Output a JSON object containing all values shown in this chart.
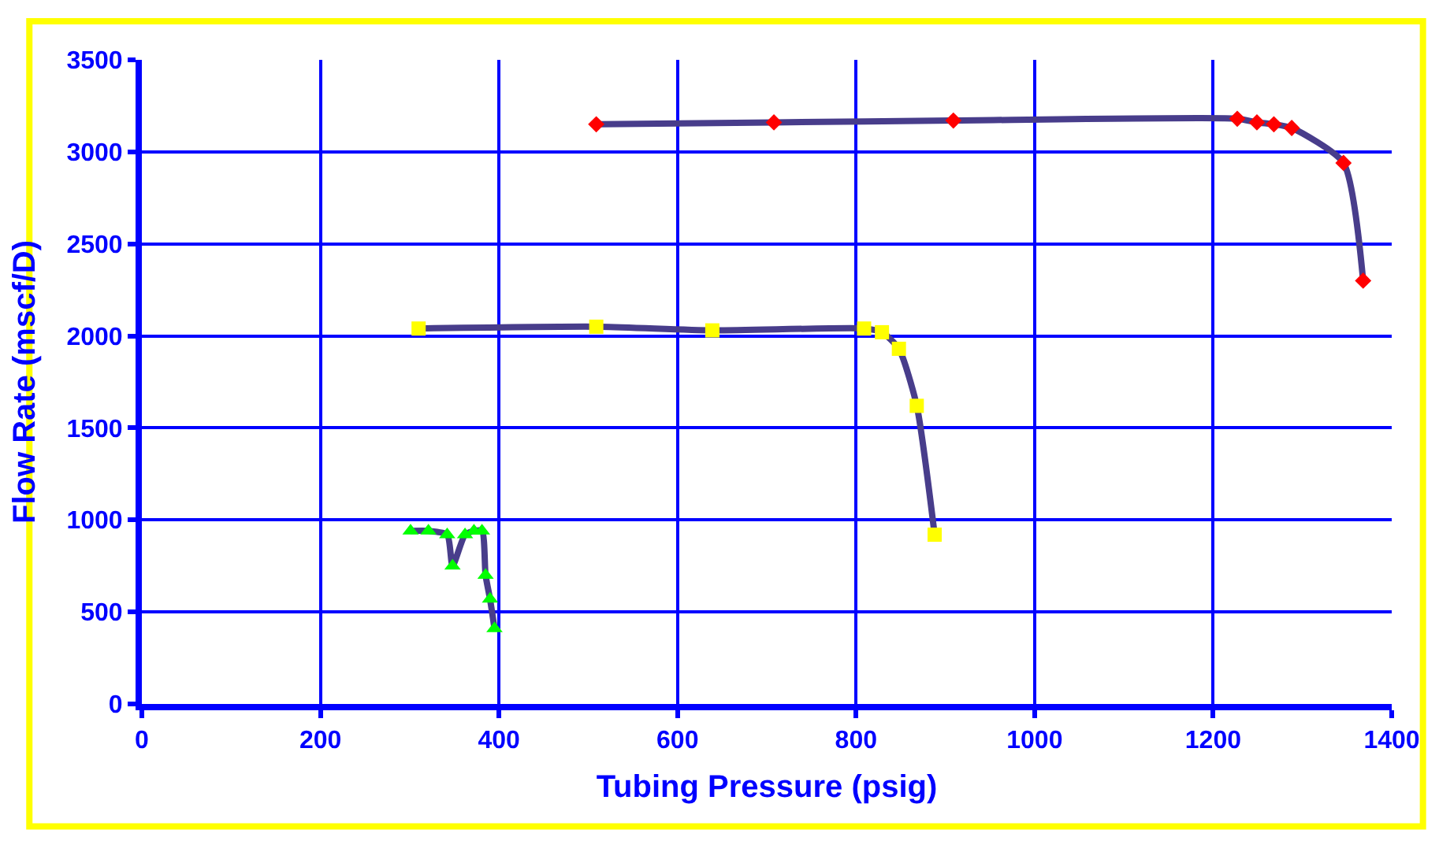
{
  "chart_data": {
    "type": "line",
    "xlabel": "Tubing Pressure (psig)",
    "ylabel": "Flow Rate (mscf/D)",
    "xlim": [
      0,
      1400
    ],
    "xticks": [
      0,
      200,
      400,
      600,
      800,
      1000,
      1200,
      1400
    ],
    "ylim": [
      0,
      3500
    ],
    "yticks": [
      0,
      500,
      1000,
      1500,
      2000,
      2500,
      3000,
      3500
    ],
    "grid": true,
    "line_style": "solid",
    "series": [
      {
        "color": "#483d8b",
        "colors": [
          "#ff0000",
          "#ff0000",
          "#ff0000",
          "#ff0000",
          "#ff0000",
          "#ff0000",
          "#ff0000",
          "#ff0000",
          "#ff0000"
        ],
        "marker": "diamond",
        "x": [
          509,
          708,
          909,
          1227,
          1249,
          1268,
          1288,
          1346,
          1368
        ],
        "values": [
          3150,
          3160,
          3170,
          3180,
          3160,
          3150,
          3130,
          2940,
          2300
        ]
      },
      {
        "color": "#483d8b",
        "colors": [
          "#ffff00",
          "#ffff00",
          "#ffff00",
          "#ffff00",
          "#ffff00",
          "#ffff00",
          "#ffff00",
          "#ffff00"
        ],
        "marker": "square",
        "x": [
          310,
          509,
          639,
          809,
          829,
          848,
          868,
          888
        ],
        "values": [
          2040,
          2050,
          2030,
          2040,
          2020,
          1930,
          1620,
          920
        ]
      },
      {
        "color": "#483d8b",
        "colors": [
          "#00ff00",
          "#00ff00",
          "#00ff00",
          "#00ff00",
          "#00ff00",
          "#00ff00",
          "#00ff00",
          "#00ff00",
          "#00ff00",
          "#00ff00"
        ],
        "marker": "triangle",
        "x": [
          301,
          321,
          342,
          348,
          362,
          372,
          381,
          385,
          390,
          395
        ],
        "values": [
          940,
          940,
          920,
          750,
          920,
          940,
          940,
          700,
          570,
          410
        ]
      }
    ]
  }
}
